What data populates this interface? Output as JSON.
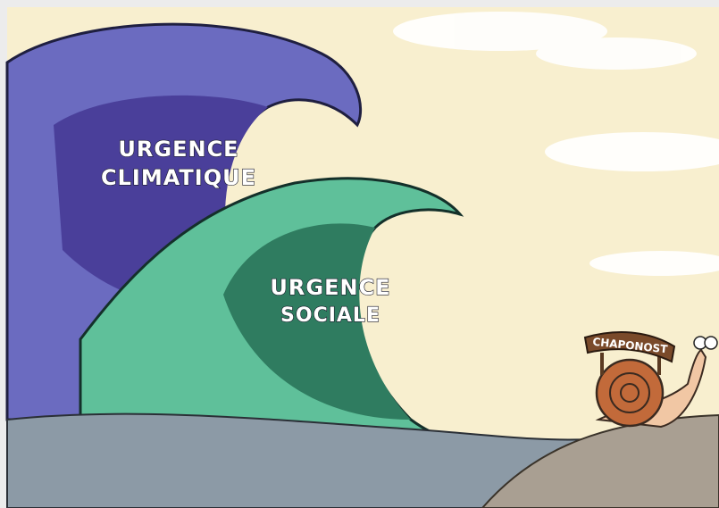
{
  "waves": [
    {
      "lines": [
        "URGENCE",
        "CLIMATIQUE"
      ]
    },
    {
      "lines": [
        "URGENCE",
        "SOCIALE"
      ]
    }
  ],
  "sign": "CHAPONOST"
}
